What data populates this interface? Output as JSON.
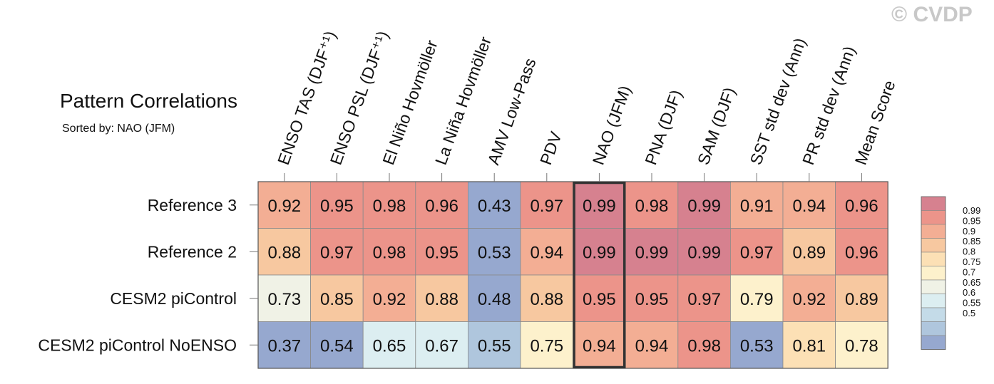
{
  "watermark": "© CVDP",
  "chart_data": {
    "type": "heatmap",
    "title": "Pattern Correlations",
    "subtitle": "Sorted by: NAO (JFM)",
    "columns": [
      "ENSO TAS (DJF⁺¹)",
      "ENSO PSL (DJF⁺¹)",
      "El Niño Hovmöller",
      "La Niña Hovmöller",
      "AMV Low-Pass",
      "PDV",
      "NAO (JFM)",
      "PNA (DJF)",
      "SAM (DJF)",
      "SST std dev (Ann)",
      "PR std dev (Ann)",
      "Mean Score"
    ],
    "rows": [
      "Reference 3",
      "Reference 2",
      "CESM2 piControl",
      "CESM2 piControl NoENSO"
    ],
    "values": [
      [
        0.92,
        0.95,
        0.98,
        0.96,
        0.43,
        0.97,
        0.99,
        0.98,
        0.99,
        0.91,
        0.94,
        0.96
      ],
      [
        0.88,
        0.97,
        0.98,
        0.95,
        0.53,
        0.94,
        0.99,
        0.99,
        0.99,
        0.97,
        0.89,
        0.96
      ],
      [
        0.73,
        0.85,
        0.92,
        0.88,
        0.48,
        0.88,
        0.95,
        0.95,
        0.97,
        0.79,
        0.92,
        0.89
      ],
      [
        0.37,
        0.54,
        0.65,
        0.67,
        0.55,
        0.75,
        0.94,
        0.94,
        0.98,
        0.53,
        0.81,
        0.78
      ]
    ],
    "highlight_column": "NAO (JFM)",
    "colorbar": {
      "labels": [
        "0.99",
        "0.95",
        "0.9",
        "0.85",
        "0.8",
        "0.75",
        "0.7",
        "0.65",
        "0.6",
        "0.55",
        "0.5"
      ],
      "levels": [
        0.5,
        0.55,
        0.6,
        0.65,
        0.7,
        0.75,
        0.8,
        0.85,
        0.9,
        0.95,
        0.99
      ],
      "colors": [
        "#96a8cf",
        "#afc6dd",
        "#c4dbe8",
        "#dceef1",
        "#f0f2e6",
        "#fdf1cc",
        "#fce0b5",
        "#f7c8a0",
        "#f3ae94",
        "#ec948a",
        "#d6818f"
      ]
    }
  }
}
